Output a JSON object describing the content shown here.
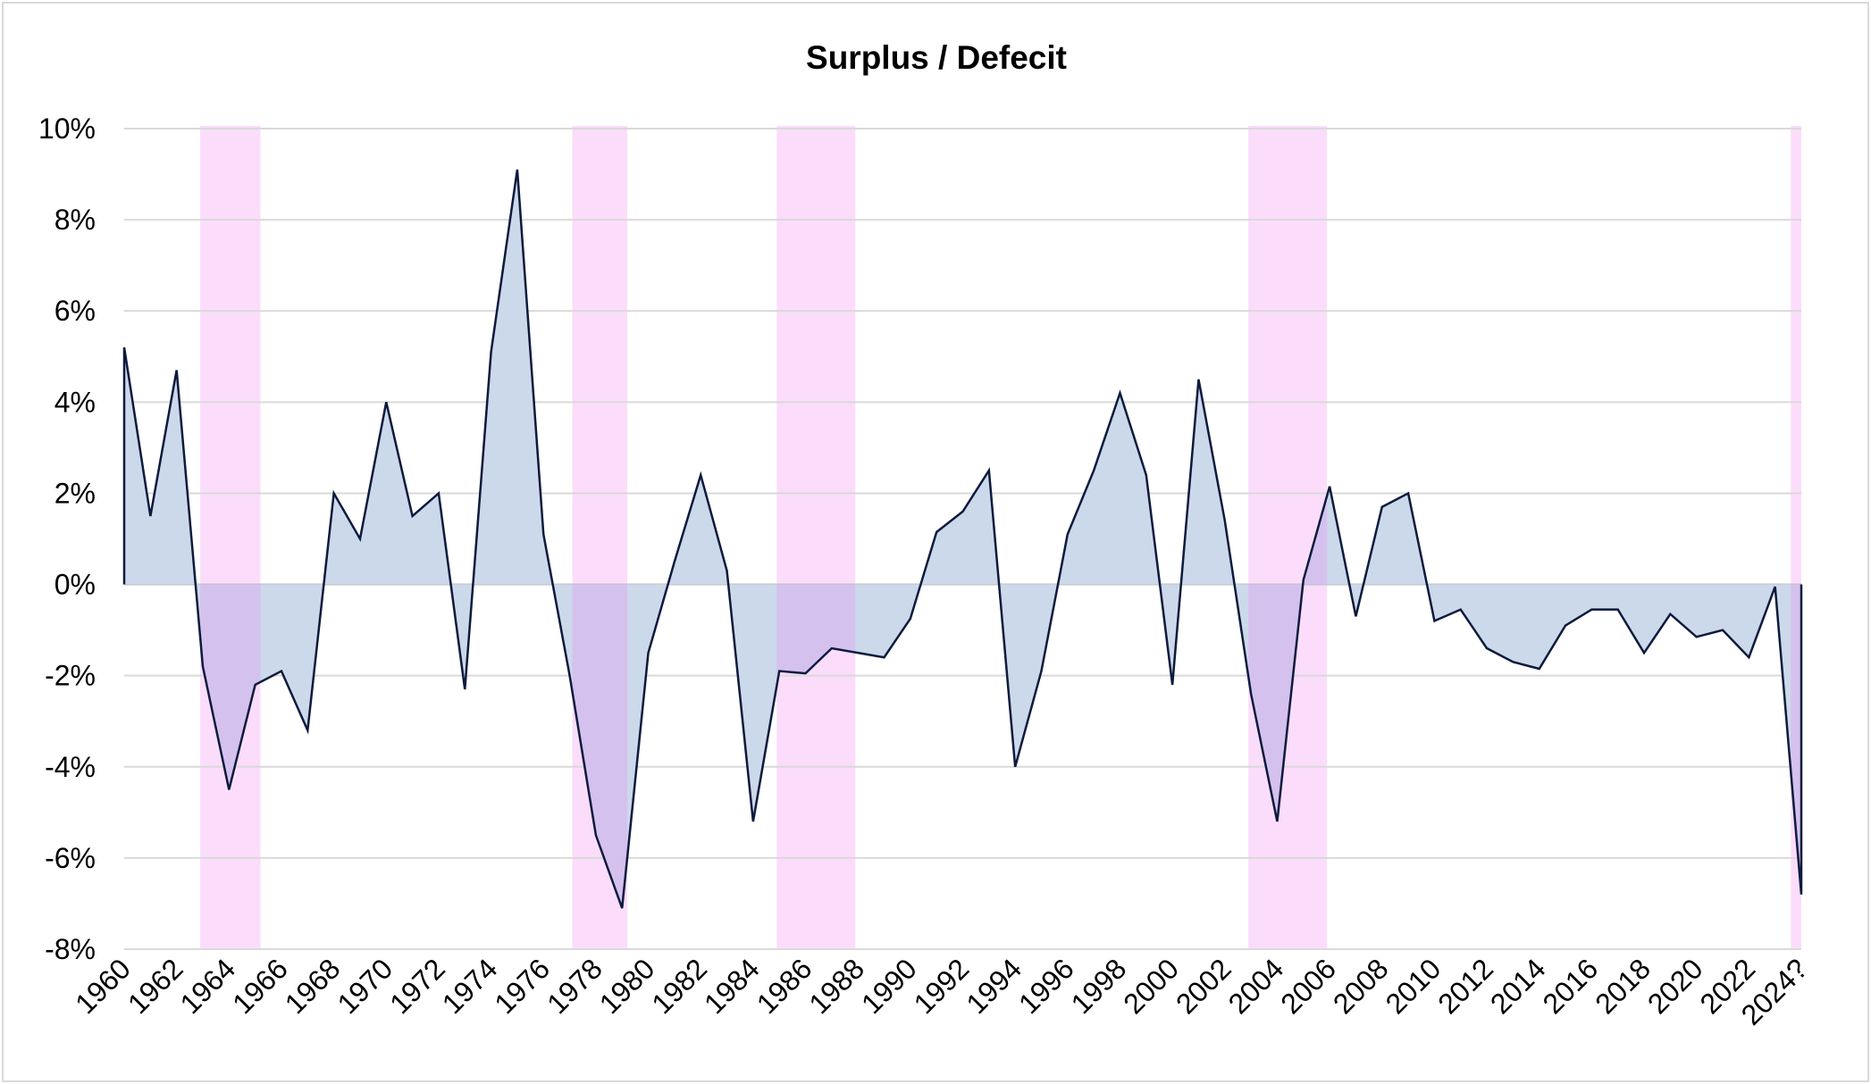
{
  "chart_data": {
    "type": "area",
    "title": "Surplus / Defecit",
    "xlabel": "",
    "ylabel": "",
    "ylim": [
      -8,
      10
    ],
    "yticks": [
      10,
      8,
      6,
      4,
      2,
      0,
      -2,
      -4,
      -6,
      -8
    ],
    "ytick_labels": [
      "10%",
      "8%",
      "6%",
      "4%",
      "2%",
      "0%",
      "-2%",
      "-4%",
      "-6%",
      "-8%"
    ],
    "categories": [
      "1960",
      "1961",
      "1962",
      "1963",
      "1964",
      "1965",
      "1966",
      "1967",
      "1968",
      "1969",
      "1970",
      "1971",
      "1972",
      "1973",
      "1974",
      "1975",
      "1976",
      "1977",
      "1978",
      "1979",
      "1980",
      "1981",
      "1982",
      "1983",
      "1984",
      "1985",
      "1986",
      "1987",
      "1988",
      "1989",
      "1990",
      "1991",
      "1992",
      "1993",
      "1994",
      "1995",
      "1996",
      "1997",
      "1998",
      "1999",
      "2000",
      "2001",
      "2002",
      "2003",
      "2004",
      "2005",
      "2006",
      "2007",
      "2008",
      "2009",
      "2010",
      "2011",
      "2012",
      "2013",
      "2014",
      "2015",
      "2016",
      "2017",
      "2018",
      "2019",
      "2020",
      "2021",
      "2022",
      "2023",
      "2024?"
    ],
    "xtick_labels": [
      "1960",
      "1962",
      "1964",
      "1966",
      "1968",
      "1970",
      "1972",
      "1974",
      "1976",
      "1978",
      "1980",
      "1982",
      "1984",
      "1986",
      "1988",
      "1990",
      "1992",
      "1994",
      "1996",
      "1998",
      "2000",
      "2002",
      "2004",
      "2006",
      "2008",
      "2010",
      "2012",
      "2014",
      "2016",
      "2018",
      "2020",
      "2022",
      "2024?"
    ],
    "series": [
      {
        "name": "Surplus / Defecit",
        "values": [
          5.2,
          1.5,
          4.7,
          -1.8,
          -4.5,
          -2.2,
          -1.9,
          -3.2,
          2.0,
          1.0,
          4.0,
          1.5,
          2.0,
          -2.3,
          5.1,
          9.1,
          1.1,
          -2.0,
          -5.5,
          -7.1,
          -1.5,
          0.5,
          2.4,
          0.3,
          -5.2,
          -1.9,
          -1.95,
          -1.4,
          -1.5,
          -1.6,
          -0.75,
          1.15,
          1.6,
          2.5,
          -4.0,
          -1.9,
          1.1,
          2.5,
          4.2,
          2.4,
          -2.2,
          4.5,
          1.4,
          -2.4,
          -5.2,
          0.1,
          2.15,
          -0.7,
          1.7,
          2.0,
          -0.8,
          -0.55,
          -1.4,
          -1.7,
          -1.85,
          -0.9,
          -0.55,
          -0.55,
          -1.5,
          -0.65,
          -1.15,
          -1.0,
          -1.6,
          -0.05,
          -6.8
        ]
      }
    ],
    "highlight_bands": [
      {
        "start": 1962.9,
        "end": 1965.2
      },
      {
        "start": 1977.1,
        "end": 1979.2
      },
      {
        "start": 1984.9,
        "end": 1987.9
      },
      {
        "start": 2002.9,
        "end": 2005.9
      },
      {
        "start": 2023.6,
        "end": 2024.0
      }
    ],
    "colors": {
      "line": "#0d1a3d",
      "area_fill": "#ccd9ea",
      "band": "#fbddfb",
      "overlap": "#d5c1ee",
      "grid": "#d9d9d9"
    },
    "grid": true,
    "legend": "none"
  }
}
